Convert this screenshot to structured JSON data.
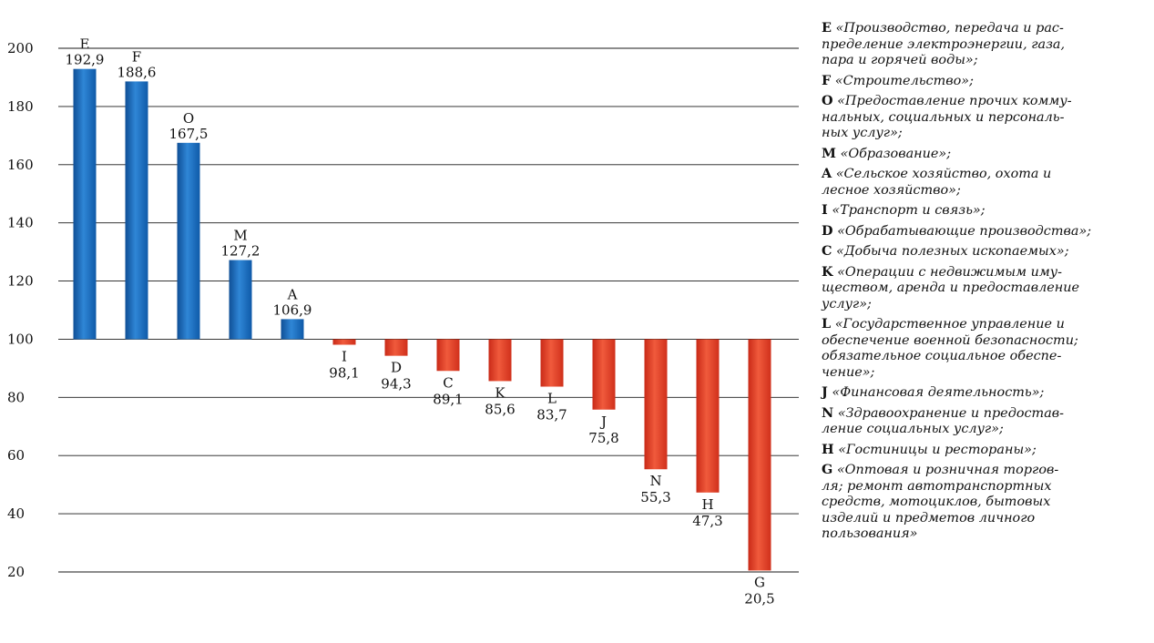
{
  "chart_data": {
    "type": "bar",
    "baseline": 100,
    "ylim": [
      10,
      205
    ],
    "yticks": [
      "20",
      "40",
      "60",
      "80",
      "100",
      "120",
      "140",
      "160",
      "180",
      "200"
    ],
    "grid": true,
    "categories": [
      "E",
      "F",
      "O",
      "M",
      "A",
      "I",
      "D",
      "C",
      "K",
      "L",
      "J",
      "N",
      "H",
      "G"
    ],
    "values": [
      192.9,
      188.6,
      167.5,
      127.2,
      106.9,
      98.1,
      94.3,
      89.1,
      85.6,
      83.7,
      75.8,
      55.3,
      47.3,
      20.5
    ],
    "value_labels": [
      "192,9",
      "188,6",
      "167,5",
      "127,2",
      "106,9",
      "98,1",
      "94,3",
      "89,1",
      "85,6",
      "83,7",
      "75,8",
      "55,3",
      "47,3",
      "20,5"
    ],
    "colors": {
      "above": "#1f6fc0",
      "below": "#e43a25"
    }
  },
  "legend": [
    {
      "code": "E",
      "text": "«Производство, передача и рас-\nпределение электроэнергии, газа,\nпара и горячей воды»;"
    },
    {
      "code": "F",
      "text": "«Строительство»;"
    },
    {
      "code": "O",
      "text": "«Предоставление прочих комму-\nнальных, социальных и персональ-\nных услуг»;"
    },
    {
      "code": "M",
      "text": "«Образование»;"
    },
    {
      "code": "A",
      "text": "«Сельское хозяйство, охота и\nлесное хозяйство»;"
    },
    {
      "code": "I",
      "text": "«Транспорт и связь»;"
    },
    {
      "code": "D",
      "text": "«Обрабатывающие производства»;"
    },
    {
      "code": "C",
      "text": "«Добыча полезных ископаемых»;"
    },
    {
      "code": "K",
      "text": "«Операции с недвижимым иму-\nществом, аренда и предоставление\nуслуг»;"
    },
    {
      "code": "L",
      "text": "«Государственное управление и\nобеспечение военной безопасности;\nобязательное социальное обеспе-\nчение»;"
    },
    {
      "code": "J",
      "text": "«Финансовая деятельность»;"
    },
    {
      "code": "N",
      "text": "«Здравоохранение и предостав-\nление социальных услуг»;"
    },
    {
      "code": "H",
      "text": "«Гостиницы и рестораны»;"
    },
    {
      "code": "G",
      "text": "«Оптовая и розничная торгов-\nля; ремонт автотранспортных\nсредств, мотоциклов, бытовых\nизделий и предметов личного\nпользования»"
    }
  ]
}
